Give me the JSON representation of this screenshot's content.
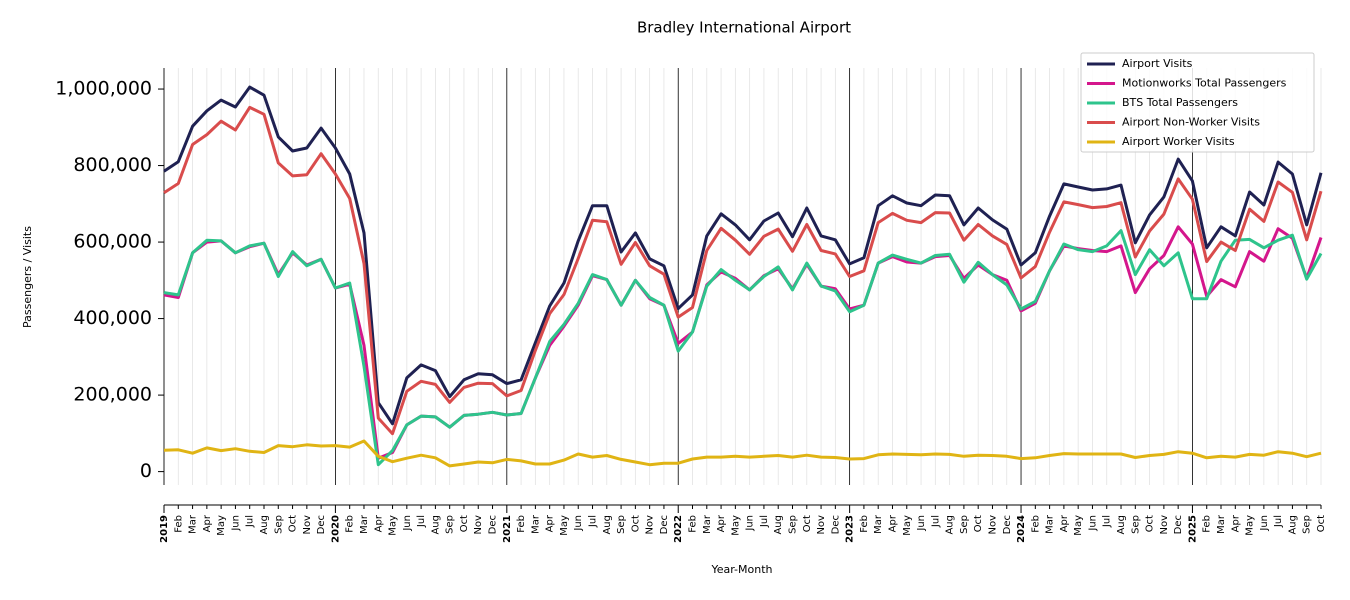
{
  "chart_data": {
    "type": "line",
    "title": "Bradley International Airport",
    "x_label": "Year-Month",
    "y_label": "Passengers / Visits",
    "categories": [
      "2019",
      "Feb",
      "Mar",
      "Apr",
      "May",
      "Jun",
      "Jul",
      "Aug",
      "Sep",
      "Oct",
      "Nov",
      "Dec",
      "2020",
      "Feb",
      "Mar",
      "Apr",
      "May",
      "Jun",
      "Jul",
      "Aug",
      "Sep",
      "Oct",
      "Nov",
      "Dec",
      "2021",
      "Feb",
      "Mar",
      "Apr",
      "May",
      "Jun",
      "Jul",
      "Aug",
      "Sep",
      "Oct",
      "Nov",
      "Dec",
      "2022",
      "Feb",
      "Mar",
      "Apr",
      "May",
      "Jun",
      "Jul",
      "Aug",
      "Sep",
      "Oct",
      "Nov",
      "Dec",
      "2023",
      "Feb",
      "Mar",
      "Apr",
      "May",
      "Jun",
      "Jul",
      "Aug",
      "Sep",
      "Oct",
      "Nov",
      "Dec",
      "2024",
      "Feb",
      "Mar",
      "Apr",
      "May",
      "Jun",
      "Jul",
      "Aug",
      "Sep",
      "Oct",
      "Nov",
      "Dec",
      "2025",
      "Feb",
      "Mar",
      "Apr",
      "May",
      "Jun",
      "Jul",
      "Aug",
      "Sep",
      "Oct"
    ],
    "series": [
      {
        "name": "Airport Visits",
        "color": "#1f2152",
        "values": [
          785000,
          810000,
          903000,
          943000,
          971000,
          953000,
          1005000,
          984000,
          875000,
          838000,
          846000,
          898000,
          846000,
          778000,
          624000,
          180000,
          125000,
          245000,
          279000,
          264000,
          196000,
          240000,
          256000,
          253000,
          230000,
          240000,
          337000,
          433000,
          493000,
          603000,
          695000,
          695000,
          574000,
          624000,
          556000,
          538000,
          426000,
          462000,
          616000,
          674000,
          645000,
          606000,
          655000,
          676000,
          614000,
          689000,
          616000,
          606000,
          543000,
          559000,
          695000,
          721000,
          702000,
          695000,
          723000,
          721000,
          645000,
          689000,
          658000,
          634000,
          540000,
          572000,
          668000,
          752000,
          744000,
          736000,
          739000,
          749000,
          598000,
          671000,
          718000,
          817000,
          760000,
          585000,
          640000,
          616000,
          731000,
          697000,
          809000,
          778000,
          645000,
          781000
        ]
      },
      {
        "name": "Motionworks Total Passengers",
        "color": "#d4168c",
        "values": [
          462000,
          455000,
          572000,
          600000,
          603000,
          572000,
          588000,
          597000,
          515000,
          572000,
          540000,
          555000,
          480000,
          490000,
          330000,
          35000,
          50000,
          122000,
          145000,
          143000,
          116000,
          147000,
          150000,
          155000,
          148000,
          152000,
          245000,
          330000,
          380000,
          435000,
          512000,
          502000,
          435000,
          500000,
          452000,
          435000,
          335000,
          365000,
          488000,
          522000,
          505000,
          475000,
          512000,
          530000,
          478000,
          542000,
          485000,
          478000,
          425000,
          435000,
          545000,
          562000,
          548000,
          545000,
          562000,
          565000,
          505000,
          540000,
          515000,
          500000,
          420000,
          440000,
          525000,
          590000,
          583000,
          578000,
          575000,
          590000,
          468000,
          530000,
          565000,
          640000,
          595000,
          458000,
          502000,
          483000,
          575000,
          550000,
          635000,
          610000,
          505000,
          612000
        ]
      },
      {
        "name": "BTS Total Passengers",
        "color": "#2ec48c",
        "values": [
          468000,
          462000,
          572000,
          605000,
          603000,
          572000,
          590000,
          597000,
          510000,
          575000,
          538000,
          555000,
          480000,
          493000,
          275000,
          18000,
          55000,
          122000,
          145000,
          143000,
          116000,
          147000,
          150000,
          155000,
          148000,
          152000,
          245000,
          340000,
          385000,
          440000,
          515000,
          502000,
          435000,
          500000,
          455000,
          435000,
          315000,
          365000,
          485000,
          528000,
          500000,
          475000,
          510000,
          535000,
          475000,
          545000,
          485000,
          472000,
          418000,
          435000,
          545000,
          566000,
          555000,
          545000,
          565000,
          568000,
          495000,
          547000,
          515000,
          488000,
          425000,
          445000,
          525000,
          595000,
          580000,
          575000,
          590000,
          630000,
          515000,
          580000,
          538000,
          572000,
          452000,
          452000,
          550000,
          605000,
          607000,
          585000,
          605000,
          618000,
          503000,
          570000
        ]
      },
      {
        "name": "Airport Non-Worker Visits",
        "color": "#d94c4c",
        "values": [
          729000,
          753000,
          855000,
          881000,
          916000,
          893000,
          952000,
          934000,
          807000,
          773000,
          776000,
          831000,
          778000,
          714000,
          544000,
          140000,
          99000,
          210000,
          236000,
          228000,
          181000,
          220000,
          231000,
          230000,
          198000,
          212000,
          317000,
          413000,
          463000,
          557000,
          657000,
          653000,
          542000,
          599000,
          538000,
          516000,
          404000,
          429000,
          578000,
          636000,
          605000,
          568000,
          615000,
          634000,
          576000,
          646000,
          578000,
          569000,
          510000,
          525000,
          651000,
          675000,
          657000,
          651000,
          677000,
          676000,
          605000,
          646000,
          616000,
          594000,
          506000,
          536000,
          626000,
          705000,
          698000,
          690000,
          693000,
          703000,
          561000,
          629000,
          673000,
          765000,
          712000,
          549000,
          600000,
          578000,
          686000,
          654000,
          757000,
          730000,
          606000,
          733000
        ]
      },
      {
        "name": "Airport Worker Visits",
        "color": "#e0b414",
        "values": [
          56000,
          57000,
          48000,
          62000,
          55000,
          60000,
          53000,
          50000,
          68000,
          65000,
          70000,
          67000,
          68000,
          64000,
          80000,
          40000,
          26000,
          35000,
          43000,
          36000,
          15000,
          20000,
          25000,
          23000,
          32000,
          28000,
          20000,
          20000,
          30000,
          46000,
          38000,
          42000,
          32000,
          25000,
          18000,
          22000,
          22000,
          33000,
          38000,
          38000,
          40000,
          38000,
          40000,
          42000,
          38000,
          43000,
          38000,
          37000,
          33000,
          34000,
          44000,
          46000,
          45000,
          44000,
          46000,
          45000,
          40000,
          43000,
          42000,
          40000,
          34000,
          36000,
          42000,
          47000,
          46000,
          46000,
          46000,
          46000,
          37000,
          42000,
          45000,
          52000,
          48000,
          36000,
          40000,
          38000,
          45000,
          43000,
          52000,
          48000,
          39000,
          48000
        ]
      }
    ],
    "ylim": [
      -35000,
      1055000
    ],
    "yticks": [
      0,
      {
        "value": 200000,
        "label": "200,000"
      },
      {
        "value": 400000,
        "label": "400,000"
      },
      {
        "value": 600000,
        "label": "600,000"
      },
      {
        "value": 800000,
        "label": "800,000"
      },
      {
        "value": 1000000,
        "label": "1,000,000"
      }
    ],
    "grid": true,
    "legend": "upper right"
  }
}
